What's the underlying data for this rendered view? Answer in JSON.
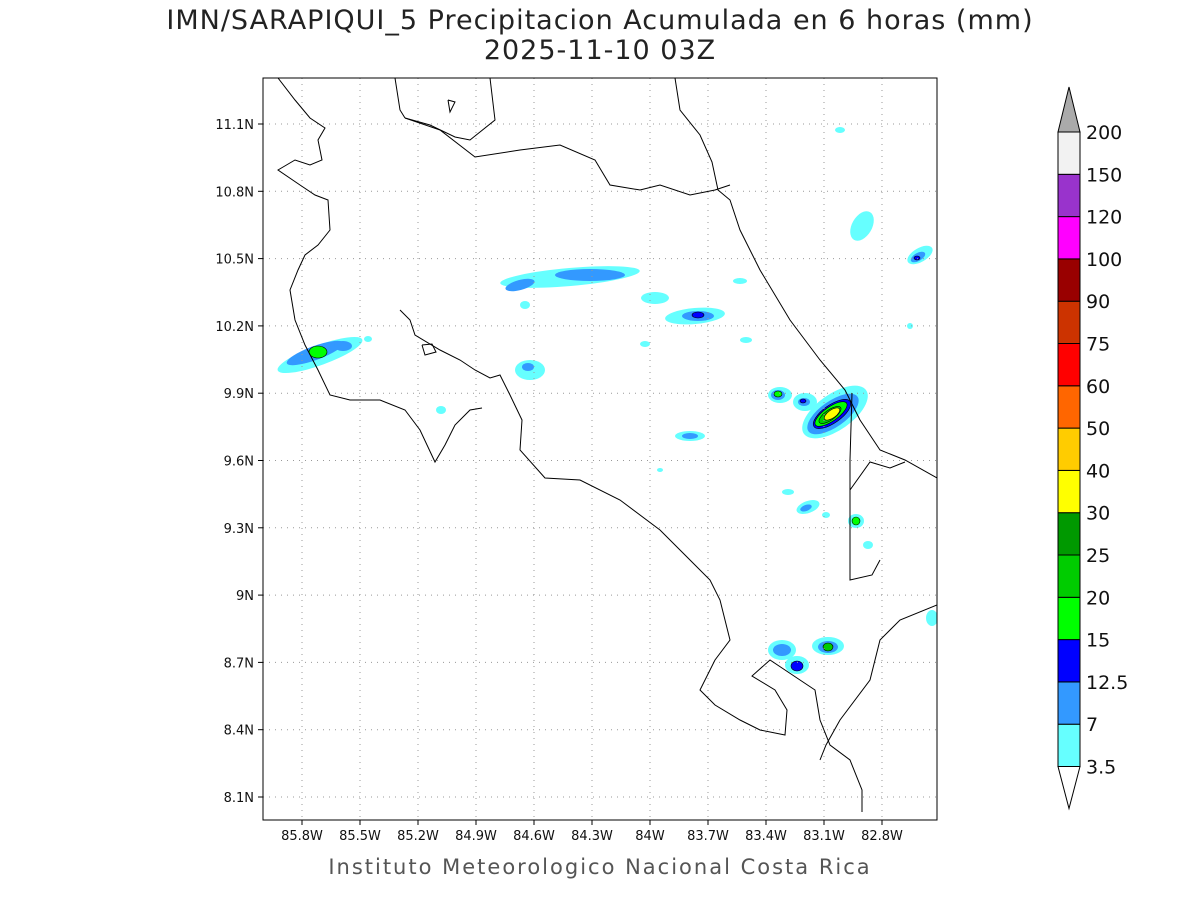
{
  "title": "IMN/SARAPIQUI_5 Precipitacion Acumulada en 6 horas (mm)",
  "subtitle": "2025-11-10 03Z",
  "credit": "Instituto Meteorologico Nacional Costa Rica",
  "map": {
    "lon_range": [
      -86.0,
      -82.5
    ],
    "lat_range": [
      8.0,
      11.3
    ],
    "lon_ticks": [
      {
        "v": -85.8,
        "label": "85.8W"
      },
      {
        "v": -85.5,
        "label": "85.5W"
      },
      {
        "v": -85.2,
        "label": "85.2W"
      },
      {
        "v": -84.9,
        "label": "84.9W"
      },
      {
        "v": -84.6,
        "label": "84.6W"
      },
      {
        "v": -84.3,
        "label": "84.3W"
      },
      {
        "v": -84.0,
        "label": "84W"
      },
      {
        "v": -83.7,
        "label": "83.7W"
      },
      {
        "v": -83.4,
        "label": "83.4W"
      },
      {
        "v": -83.1,
        "label": "83.1W"
      },
      {
        "v": -82.8,
        "label": "82.8W"
      }
    ],
    "lat_ticks": [
      {
        "v": 11.1,
        "label": "11.1N"
      },
      {
        "v": 10.8,
        "label": "10.8N"
      },
      {
        "v": 10.5,
        "label": "10.5N"
      },
      {
        "v": 10.2,
        "label": "10.2N"
      },
      {
        "v": 9.9,
        "label": "9.9N"
      },
      {
        "v": 9.6,
        "label": "9.6N"
      },
      {
        "v": 9.3,
        "label": "9.3N"
      },
      {
        "v": 9.0,
        "label": "9N"
      },
      {
        "v": 8.7,
        "label": "8.7N"
      },
      {
        "v": 8.4,
        "label": "8.4N"
      },
      {
        "v": 8.1,
        "label": "8.1N"
      }
    ],
    "grid": true
  },
  "colorbar": {
    "levels": [
      {
        "label": "3.5",
        "color": "#66ffff"
      },
      {
        "label": "7",
        "color": "#3399ff"
      },
      {
        "label": "12.5",
        "color": "#0000ff"
      },
      {
        "label": "15",
        "color": "#00ff00"
      },
      {
        "label": "20",
        "color": "#00cc00"
      },
      {
        "label": "25",
        "color": "#009900"
      },
      {
        "label": "30",
        "color": "#ffff00"
      },
      {
        "label": "40",
        "color": "#ffcc00"
      },
      {
        "label": "50",
        "color": "#ff6600"
      },
      {
        "label": "60",
        "color": "#ff0000"
      },
      {
        "label": "75",
        "color": "#cc3300"
      },
      {
        "label": "90",
        "color": "#990000"
      },
      {
        "label": "100",
        "color": "#ff00ff"
      },
      {
        "label": "120",
        "color": "#9933cc"
      },
      {
        "label": "150",
        "color": "#f2f2f2"
      },
      {
        "label": "200",
        "color": "#aaaaaa"
      }
    ]
  }
}
